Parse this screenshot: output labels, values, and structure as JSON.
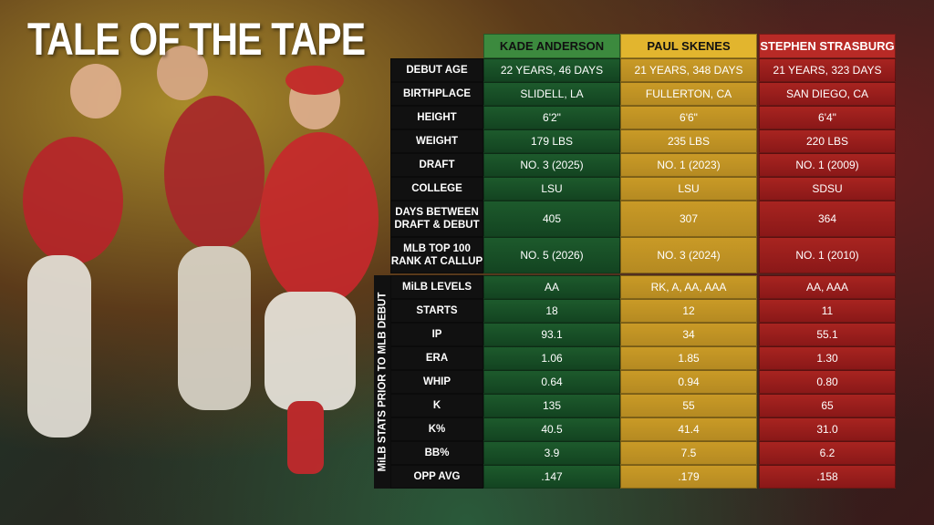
{
  "title": "TALE OF THE TAPE",
  "side_label": "MiLB STATS PRIOR TO MLB DEBUT",
  "table": {
    "columns": [
      "KADE ANDERSON",
      "PAUL SKENES",
      "STEPHEN STRASBURG"
    ],
    "rows": [
      {
        "label": [
          "DEBUT AGE"
        ],
        "cells": [
          "22 YEARS, 46 DAYS",
          "21 YEARS, 348 DAYS",
          "21 YEARS, 323 DAYS"
        ]
      },
      {
        "label": [
          "BIRTHPLACE"
        ],
        "cells": [
          "SLIDELL, LA",
          "FULLERTON, CA",
          "SAN DIEGO, CA"
        ]
      },
      {
        "label": [
          "HEIGHT"
        ],
        "cells": [
          "6'2\"",
          "6'6\"",
          "6'4\""
        ]
      },
      {
        "label": [
          "WEIGHT"
        ],
        "cells": [
          "179 LBS",
          "235 LBS",
          "220 LBS"
        ]
      },
      {
        "label": [
          "DRAFT"
        ],
        "cells": [
          "NO. 3 (2025)",
          "NO. 1 (2023)",
          "NO. 1 (2009)"
        ]
      },
      {
        "label": [
          "COLLEGE"
        ],
        "cells": [
          "LSU",
          "LSU",
          "SDSU"
        ]
      },
      {
        "label": [
          "DAYS BETWEEN",
          "DRAFT & DEBUT"
        ],
        "cells": [
          "405",
          "307",
          "364"
        ]
      },
      {
        "label": [
          "MLB TOP 100",
          "RANK AT CALLUP"
        ],
        "cells": [
          "NO. 5 (2026)",
          "NO. 3 (2024)",
          "NO. 1 (2010)"
        ]
      },
      {
        "label": [
          "MiLB LEVELS"
        ],
        "cells": [
          "AA",
          "RK, A, AA, AAA",
          "AA, AAA"
        ]
      },
      {
        "label": [
          "STARTS"
        ],
        "cells": [
          "18",
          "12",
          "11"
        ]
      },
      {
        "label": [
          "IP"
        ],
        "cells": [
          "93.1",
          "34",
          "55.1"
        ]
      },
      {
        "label": [
          "ERA"
        ],
        "cells": [
          "1.06",
          "1.85",
          "1.30"
        ]
      },
      {
        "label": [
          "WHIP"
        ],
        "cells": [
          "0.64",
          "0.94",
          "0.80"
        ]
      },
      {
        "label": [
          "K"
        ],
        "cells": [
          "135",
          "55",
          "65"
        ]
      },
      {
        "label": [
          "K%"
        ],
        "cells": [
          "40.5",
          "41.4",
          "31.0"
        ]
      },
      {
        "label": [
          "BB%"
        ],
        "cells": [
          "3.9",
          "7.5",
          "6.2"
        ]
      },
      {
        "label": [
          "OPP AVG"
        ],
        "cells": [
          ".147",
          ".179",
          ".158"
        ]
      }
    ]
  }
}
